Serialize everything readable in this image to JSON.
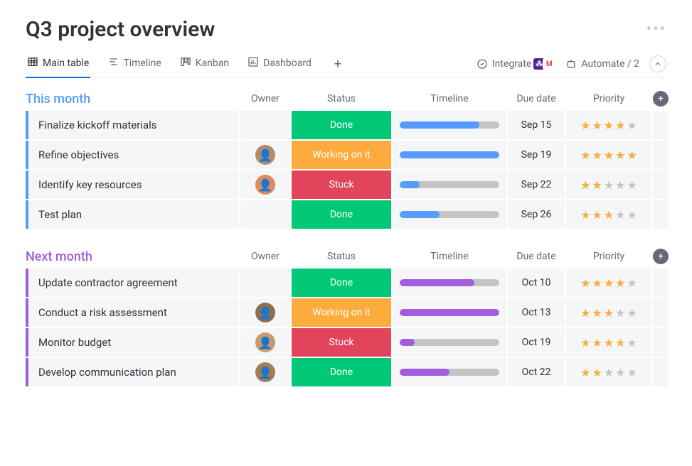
{
  "title": "Q3 project overview",
  "colors": {
    "group_blue": "#579bfc",
    "group_purple": "#a25ddc",
    "star_on": "#fdab3d",
    "star_off": "#c4c4c4",
    "track": "#c4c4c4",
    "active_tab_underline": "#0073ea"
  },
  "views": [
    {
      "id": "main",
      "label": "Main table",
      "icon": "table",
      "active": true
    },
    {
      "id": "timeline",
      "label": "Timeline",
      "icon": "timeline",
      "active": false
    },
    {
      "id": "kanban",
      "label": "Kanban",
      "icon": "kanban",
      "active": false
    },
    {
      "id": "dashboard",
      "label": "Dashboard",
      "icon": "dashboard",
      "active": false
    }
  ],
  "actions": {
    "integrate": "Integrate",
    "automate": "Automate / 2",
    "integration_icons": [
      {
        "bg": "#581b98",
        "letter": "⁂"
      },
      {
        "bg": "#ffffff",
        "letter": "M",
        "fg": "#ea4335"
      }
    ]
  },
  "columns": [
    "Owner",
    "Status",
    "Timeline",
    "Due date",
    "Priority"
  ],
  "status_palette": {
    "Done": "#00c875",
    "Working on it": "#fdab3d",
    "Stuck": "#e2445c"
  },
  "avatar_palette": [
    "#b38b6d",
    "#d98c5f",
    "#8c6d4f",
    "#c99a6b",
    "#a67c52"
  ],
  "groups": [
    {
      "id": "this_month",
      "title": "This month",
      "color": "#579bfc",
      "bar_color": "#579bfc",
      "rows": [
        {
          "name": "Finalize kickoff materials",
          "owner": null,
          "status": "Done",
          "progress": 0.8,
          "due": "Sep 15",
          "stars": 4
        },
        {
          "name": "Refine objectives",
          "owner": 0,
          "status": "Working on it",
          "progress": 1.0,
          "due": "Sep 19",
          "stars": 5
        },
        {
          "name": "Identify key resources",
          "owner": 1,
          "status": "Stuck",
          "progress": 0.2,
          "due": "Sep 22",
          "stars": 2
        },
        {
          "name": "Test plan",
          "owner": null,
          "status": "Done",
          "progress": 0.4,
          "due": "Sep 26",
          "stars": 3
        }
      ]
    },
    {
      "id": "next_month",
      "title": "Next month",
      "color": "#a25ddc",
      "bar_color": "#a25ddc",
      "rows": [
        {
          "name": "Update contractor agreement",
          "owner": null,
          "status": "Done",
          "progress": 0.75,
          "due": "Oct 10",
          "stars": 4
        },
        {
          "name": "Conduct a risk assessment",
          "owner": 2,
          "status": "Working on it",
          "progress": 1.0,
          "due": "Oct 13",
          "stars": 3
        },
        {
          "name": "Monitor budget",
          "owner": 3,
          "status": "Stuck",
          "progress": 0.15,
          "due": "Oct 19",
          "stars": 4
        },
        {
          "name": "Develop communication plan",
          "owner": 4,
          "status": "Done",
          "progress": 0.5,
          "due": "Oct 22",
          "stars": 2
        }
      ]
    }
  ]
}
